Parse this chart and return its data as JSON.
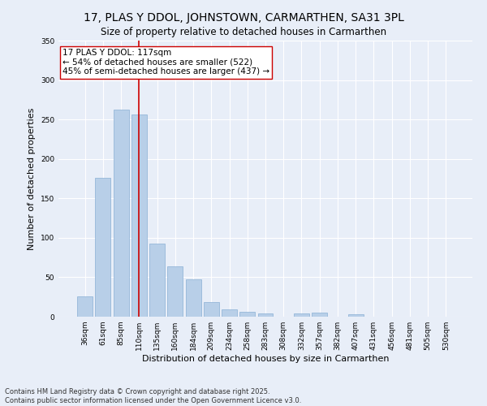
{
  "title": "17, PLAS Y DDOL, JOHNSTOWN, CARMARTHEN, SA31 3PL",
  "subtitle": "Size of property relative to detached houses in Carmarthen",
  "xlabel": "Distribution of detached houses by size in Carmarthen",
  "ylabel": "Number of detached properties",
  "categories": [
    "36sqm",
    "61sqm",
    "85sqm",
    "110sqm",
    "135sqm",
    "160sqm",
    "184sqm",
    "209sqm",
    "234sqm",
    "258sqm",
    "283sqm",
    "308sqm",
    "332sqm",
    "357sqm",
    "382sqm",
    "407sqm",
    "431sqm",
    "456sqm",
    "481sqm",
    "505sqm",
    "530sqm"
  ],
  "values": [
    26,
    176,
    263,
    256,
    93,
    64,
    47,
    19,
    9,
    6,
    4,
    0,
    4,
    5,
    0,
    3,
    0,
    0,
    0,
    0,
    0
  ],
  "bar_color": "#b8cfe8",
  "bar_edge_color": "#8aafd4",
  "bg_color": "#e8eef8",
  "grid_color": "#ffffff",
  "vline_x_index": 3,
  "vline_color": "#cc0000",
  "annotation_line1": "17 PLAS Y DDOL: 117sqm",
  "annotation_line2": "← 54% of detached houses are smaller (522)",
  "annotation_line3": "45% of semi-detached houses are larger (437) →",
  "annotation_box_edgecolor": "#cc0000",
  "footnote1": "Contains HM Land Registry data © Crown copyright and database right 2025.",
  "footnote2": "Contains public sector information licensed under the Open Government Licence v3.0.",
  "ylim": [
    0,
    350
  ],
  "title_fontsize": 10,
  "subtitle_fontsize": 8.5,
  "xlabel_fontsize": 8,
  "ylabel_fontsize": 8,
  "tick_fontsize": 6.5,
  "annotation_fontsize": 7.5,
  "footnote_fontsize": 6
}
